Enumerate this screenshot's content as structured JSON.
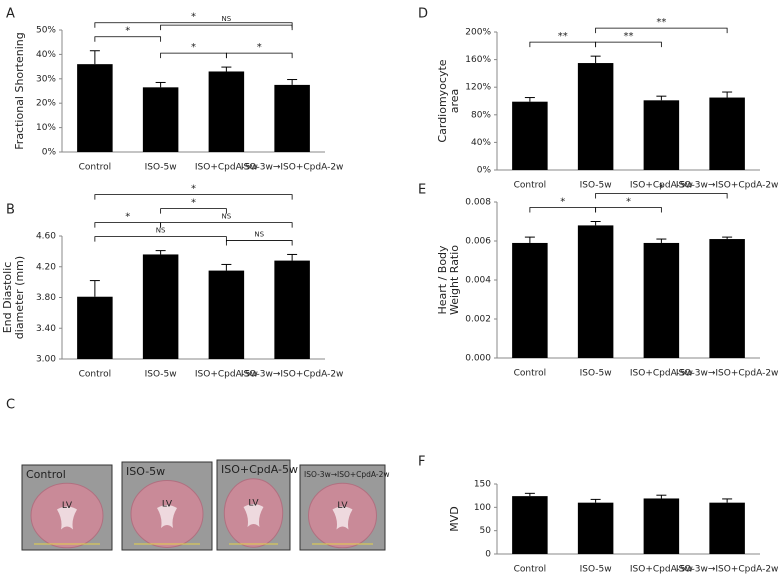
{
  "chart_data": [
    {
      "type": "bar",
      "panel": "A",
      "ylabel": [
        "Fractional Shortening"
      ],
      "categories": [
        "Control",
        "ISO-5w",
        "ISO+CpdA-5w",
        "ISO-3w→ISO+CpdA-2w"
      ],
      "values": [
        36,
        26.5,
        33,
        27.5
      ],
      "errors": [
        5.5,
        2,
        1.8,
        2.2
      ],
      "color": "#000000",
      "ylim": [
        0,
        50
      ],
      "yticks": [
        {
          "value": 0,
          "label": "0%"
        },
        {
          "value": 10,
          "label": "10%"
        },
        {
          "value": 20,
          "label": "20%"
        },
        {
          "value": 30,
          "label": "30%"
        },
        {
          "value": 40,
          "label": "40%"
        },
        {
          "value": 50,
          "label": "50%"
        }
      ],
      "brackets": [
        {
          "from": "Control",
          "to": "ISO-5w",
          "label": "*"
        },
        {
          "from": "ISO-5w",
          "to": "ISO+CpdA-5w",
          "label": "*"
        },
        {
          "from": "ISO+CpdA-5w",
          "to": "ISO-3w→ISO+CpdA-2w",
          "label": "*"
        },
        {
          "from": "Control",
          "to": "ISO-3w→ISO+CpdA-2w",
          "label": "*"
        },
        {
          "from": "ISO-5w",
          "to": "ISO-3w→ISO+CpdA-2w",
          "label": "NS"
        }
      ]
    },
    {
      "type": "bar",
      "panel": "B",
      "ylabel": [
        "End Diastolic",
        "diameter (mm)"
      ],
      "categories": [
        "Control",
        "ISO-5w",
        "ISO+CpdA-5w",
        "ISO-3w→ISO+CpdA-2w"
      ],
      "values": [
        3.81,
        4.36,
        4.15,
        4.28
      ],
      "errors": [
        0.21,
        0.05,
        0.08,
        0.08
      ],
      "color": "#000000",
      "ylim": [
        3.0,
        4.6
      ],
      "yticks": [
        {
          "value": 3.0,
          "label": "3.00"
        },
        {
          "value": 3.4,
          "label": "3.40"
        },
        {
          "value": 3.8,
          "label": "3.80"
        },
        {
          "value": 4.2,
          "label": "4.20"
        },
        {
          "value": 4.6,
          "label": "4.60"
        }
      ],
      "brackets": [
        {
          "from": "Control",
          "to": "ISO+CpdA-5w",
          "label": "NS"
        },
        {
          "from": "ISO-5w",
          "to": "ISO-3w→ISO+CpdA-2w",
          "label": "NS"
        },
        {
          "from": "Control",
          "to": "ISO-5w",
          "label": "*"
        },
        {
          "from": "ISO-5w",
          "to": "ISO+CpdA-5w",
          "label": "*"
        },
        {
          "from": "ISO+CpdA-5w",
          "to": "ISO-3w→ISO+CpdA-2w",
          "label": "NS"
        },
        {
          "from": "Control",
          "to": "ISO-3w→ISO+CpdA-2w",
          "label": "*"
        }
      ]
    },
    {
      "type": "bar",
      "panel": "D",
      "ylabel": [
        "Cardiomyocyte",
        "area"
      ],
      "categories": [
        "Control",
        "ISO-5w",
        "ISO+CpdA-5w",
        "ISO-3w→ISO+CpdA-2w"
      ],
      "values": [
        99,
        155,
        101,
        105
      ],
      "errors": [
        6,
        10,
        6,
        8
      ],
      "color": "#000000",
      "ylim": [
        0,
        200
      ],
      "yticks": [
        {
          "value": 0,
          "label": "0%"
        },
        {
          "value": 40,
          "label": "40%"
        },
        {
          "value": 80,
          "label": "80%"
        },
        {
          "value": 120,
          "label": "120%"
        },
        {
          "value": 160,
          "label": "160%"
        },
        {
          "value": 200,
          "label": "200%"
        }
      ],
      "brackets": [
        {
          "from": "Control",
          "to": "ISO-5w",
          "label": "**"
        },
        {
          "from": "ISO-5w",
          "to": "ISO+CpdA-5w",
          "label": "**"
        },
        {
          "from": "ISO-5w",
          "to": "ISO-3w→ISO+CpdA-2w",
          "label": "**"
        }
      ]
    },
    {
      "type": "bar",
      "panel": "E",
      "ylabel": [
        "Heart / Body",
        "Weight Ratio"
      ],
      "categories": [
        "Control",
        "ISO-5w",
        "ISO+CpdA-5w",
        "ISO-3w→ISO+CpdA-2w"
      ],
      "values": [
        0.0059,
        0.0068,
        0.0059,
        0.0061
      ],
      "errors": [
        0.0003,
        0.0002,
        0.0002,
        0.0001
      ],
      "color": "#000000",
      "ylim": [
        0,
        0.008
      ],
      "yticks": [
        {
          "value": 0,
          "label": "0.000"
        },
        {
          "value": 0.002,
          "label": "0.002"
        },
        {
          "value": 0.004,
          "label": "0.004"
        },
        {
          "value": 0.006,
          "label": "0.006"
        },
        {
          "value": 0.008,
          "label": "0.008"
        }
      ],
      "brackets": [
        {
          "from": "Control",
          "to": "ISO-5w",
          "label": "*"
        },
        {
          "from": "ISO-5w",
          "to": "ISO+CpdA-5w",
          "label": "*"
        },
        {
          "from": "ISO-5w",
          "to": "ISO-3w→ISO+CpdA-2w",
          "label": "*"
        }
      ]
    },
    {
      "type": "bar",
      "panel": "F",
      "ylabel": [
        "MVD"
      ],
      "categories": [
        "Control",
        "ISO-5w",
        "ISO+CpdA-5w",
        "ISO-3w→ISO+CpdA-2w"
      ],
      "values": [
        124,
        110,
        119,
        110
      ],
      "errors": [
        6,
        7,
        7,
        8
      ],
      "color": "#000000",
      "ylim": [
        0,
        150
      ],
      "yticks": [
        0,
        50,
        100,
        150
      ],
      "brackets": []
    }
  ],
  "panel_c": {
    "panel": "C",
    "images": [
      {
        "label": "Control",
        "region": "LV"
      },
      {
        "label": "ISO-5w",
        "region": "LV"
      },
      {
        "label": "ISO+CpdA-5w",
        "region": "LV"
      },
      {
        "label": "ISO-3w→ISO+CpdA-2w",
        "region": "LV"
      }
    ]
  }
}
